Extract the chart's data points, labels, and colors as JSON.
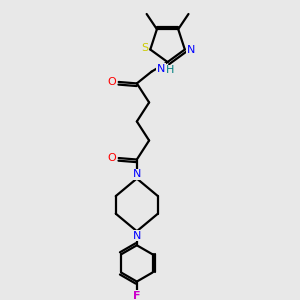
{
  "bg_color": "#e8e8e8",
  "bond_color": "#000000",
  "S_color": "#cccc00",
  "N_color": "#0000ff",
  "O_color": "#ff0000",
  "F_color": "#cc00cc",
  "line_width": 1.6,
  "figsize": [
    3.0,
    3.0
  ],
  "dpi": 100,
  "xlim": [
    0,
    10
  ],
  "ylim": [
    0,
    10
  ]
}
